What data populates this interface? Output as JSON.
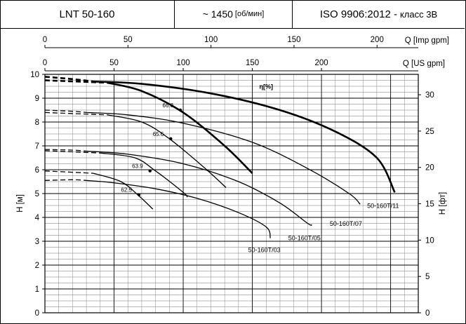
{
  "header": {
    "model": "LNT 50-160",
    "speed": "~ 1450",
    "speed_unit": "[об/мин]",
    "standard": "ISO 9906:2012 -",
    "class": "класс 3B"
  },
  "chart_data": {
    "type": "line",
    "title": "",
    "x_top_label": "Q [Imp gpm]",
    "x_label": "Q [US gpm]",
    "y_left_label": "H [м]",
    "y_right_label": "H [фт]",
    "efficiency_label": "η[%]",
    "x_imp_ticks": [
      "0",
      "50",
      "100",
      "150",
      "200"
    ],
    "x_us_ticks": [
      "0",
      "50",
      "100",
      "150",
      "200"
    ],
    "y_left_ticks": [
      "0",
      "1",
      "2",
      "3",
      "4",
      "5",
      "6",
      "7",
      "8",
      "9",
      "10"
    ],
    "y_right_ticks": [
      "0",
      "5",
      "10",
      "15",
      "20",
      "25",
      "30"
    ],
    "xlim": [
      0,
      270
    ],
    "ylim": [
      0,
      10
    ],
    "series": [
      {
        "name": "50-160T/03",
        "dashed": [
          [
            0,
            5.55
          ],
          [
            20,
            5.58
          ],
          [
            30,
            5.55
          ]
        ],
        "solid": [
          [
            30,
            5.55
          ],
          [
            50,
            5.45
          ],
          [
            80,
            5.2
          ],
          [
            110,
            4.8
          ],
          [
            140,
            4.2
          ],
          [
            160,
            3.6
          ],
          [
            163,
            3.13
          ]
        ]
      },
      {
        "name": "50-160T/05",
        "dashed": [
          [
            0,
            6.85
          ],
          [
            20,
            6.82
          ],
          [
            30,
            6.78
          ]
        ],
        "solid": [
          [
            30,
            6.78
          ],
          [
            60,
            6.65
          ],
          [
            100,
            6.25
          ],
          [
            140,
            5.5
          ],
          [
            170,
            4.6
          ],
          [
            190,
            3.75
          ],
          [
            193,
            3.7
          ]
        ]
      },
      {
        "name": "50-160T/07",
        "dashed": [
          [
            0,
            8.5
          ],
          [
            20,
            8.45
          ],
          [
            30,
            8.4
          ]
        ],
        "solid": [
          [
            30,
            8.4
          ],
          [
            60,
            8.3
          ],
          [
            100,
            7.95
          ],
          [
            150,
            7.15
          ],
          [
            190,
            6.05
          ],
          [
            220,
            5.0
          ],
          [
            228,
            4.55
          ]
        ]
      },
      {
        "name": "50-160T/11",
        "dashed": [
          [
            0,
            9.9
          ],
          [
            20,
            9.8
          ],
          [
            35,
            9.7
          ]
        ],
        "solid": [
          [
            35,
            9.7
          ],
          [
            70,
            9.6
          ],
          [
            120,
            9.2
          ],
          [
            170,
            8.5
          ],
          [
            210,
            7.6
          ],
          [
            240,
            6.5
          ],
          [
            253,
            5.05
          ]
        ]
      }
    ],
    "efficiency_curves": [
      {
        "label": "62.5",
        "dashed": [
          [
            0,
            5.95
          ],
          [
            35,
            5.85
          ]
        ],
        "solid": [
          [
            35,
            5.85
          ],
          [
            55,
            5.5
          ],
          [
            68,
            4.9
          ],
          [
            78,
            4.35
          ]
        ],
        "mark": [
          68,
          4.95
        ]
      },
      {
        "label": "63.9",
        "dashed": [
          [
            0,
            6.8
          ],
          [
            40,
            6.7
          ]
        ],
        "solid": [
          [
            40,
            6.7
          ],
          [
            65,
            6.5
          ],
          [
            80,
            5.95
          ],
          [
            100,
            5.05
          ],
          [
            103,
            4.85
          ]
        ],
        "mark": [
          76,
          5.95
        ]
      },
      {
        "label": "65.6",
        "dashed": [
          [
            0,
            8.4
          ],
          [
            45,
            8.3
          ]
        ],
        "solid": [
          [
            45,
            8.3
          ],
          [
            70,
            8.0
          ],
          [
            90,
            7.3
          ],
          [
            115,
            6.1
          ],
          [
            131,
            5.25
          ]
        ],
        "mark": [
          91,
          7.3
        ]
      },
      {
        "label": "66.8",
        "dashed": [
          [
            0,
            9.75
          ],
          [
            45,
            9.65
          ]
        ],
        "solid": [
          [
            45,
            9.65
          ],
          [
            70,
            9.3
          ],
          [
            100,
            8.4
          ],
          [
            130,
            7.0
          ],
          [
            150,
            5.85
          ]
        ],
        "mark": [
          98,
          8.5
        ]
      }
    ],
    "curve_labels": [
      {
        "text": "50-160T/11",
        "at": [
          233,
          4.4
        ]
      },
      {
        "text": "50-160T/07",
        "at": [
          206,
          3.65
        ]
      },
      {
        "text": "50-160T/05",
        "at": [
          176,
          3.05
        ]
      },
      {
        "text": "50-160T/03",
        "at": [
          147,
          2.55
        ]
      }
    ]
  }
}
